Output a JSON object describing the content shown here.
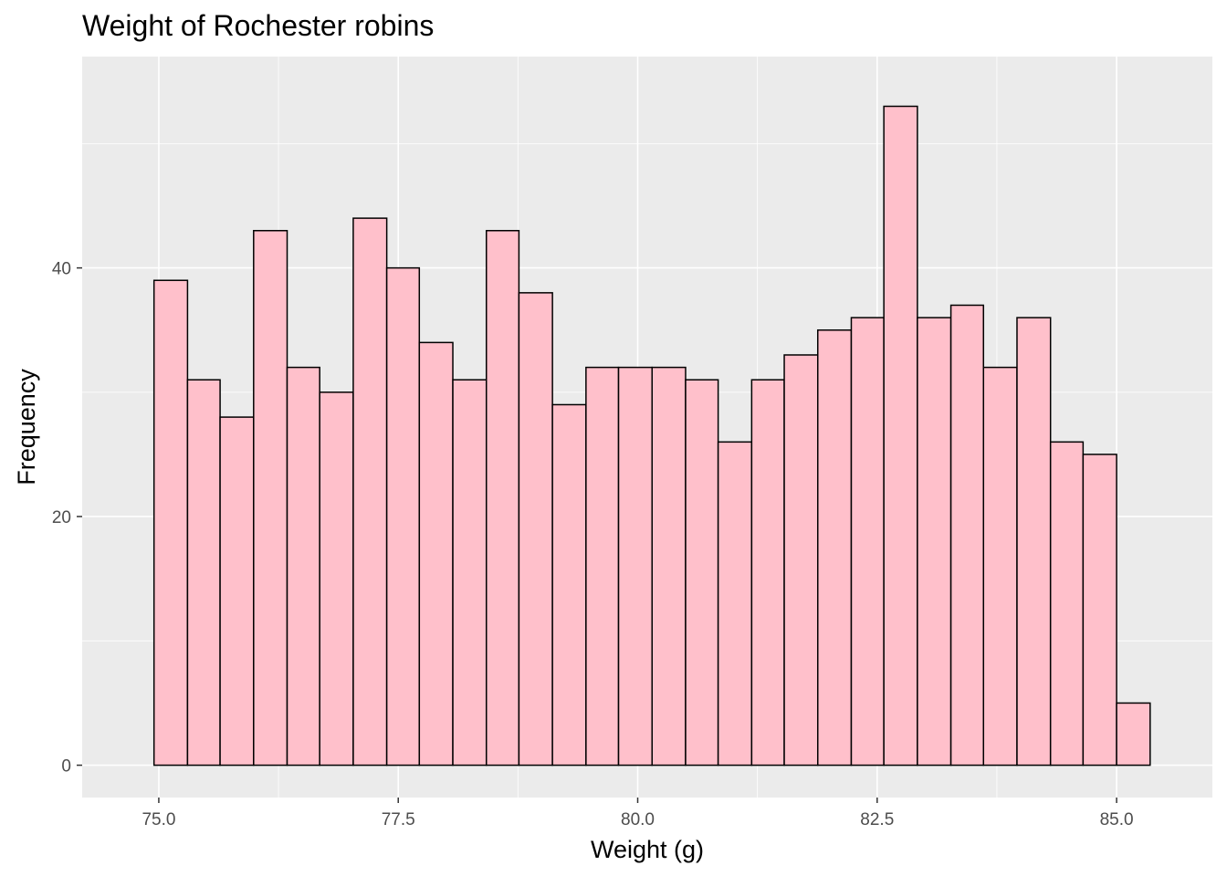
{
  "chart_data": {
    "type": "bar",
    "title": "Weight of Rochester robins",
    "xlabel": "Weight (g)",
    "ylabel": "Frequency",
    "xlim": [
      74.2,
      86.0
    ],
    "ylim": [
      -2.6,
      57.0
    ],
    "x_ticks": [
      75.0,
      77.5,
      80.0,
      82.5,
      85.0
    ],
    "x_tick_labels": [
      "75.0",
      "77.5",
      "80.0",
      "82.5",
      "85.0"
    ],
    "y_ticks": [
      0,
      20,
      40
    ],
    "y_tick_labels": [
      "0",
      "20",
      "40"
    ],
    "bin_edges": [
      74.95,
      75.3,
      75.64,
      75.99,
      76.34,
      76.68,
      77.03,
      77.38,
      77.72,
      78.07,
      78.42,
      78.76,
      79.11,
      79.46,
      79.8,
      80.15,
      80.5,
      80.84,
      81.19,
      81.53,
      81.88,
      82.23,
      82.57,
      82.92,
      83.27,
      83.61,
      83.96,
      84.31,
      84.65,
      85.0,
      85.35
    ],
    "values": [
      39,
      31,
      28,
      43,
      32,
      30,
      44,
      40,
      34,
      31,
      43,
      38,
      29,
      32,
      32,
      32,
      31,
      26,
      31,
      33,
      35,
      36,
      53,
      36,
      37,
      32,
      36,
      26,
      25,
      5
    ],
    "grid": true,
    "legend": "none",
    "colors": {
      "bar_fill": "#FFC0CB",
      "bar_stroke": "#000000",
      "panel_bg": "#EBEBEB",
      "grid": "#FFFFFF"
    }
  }
}
